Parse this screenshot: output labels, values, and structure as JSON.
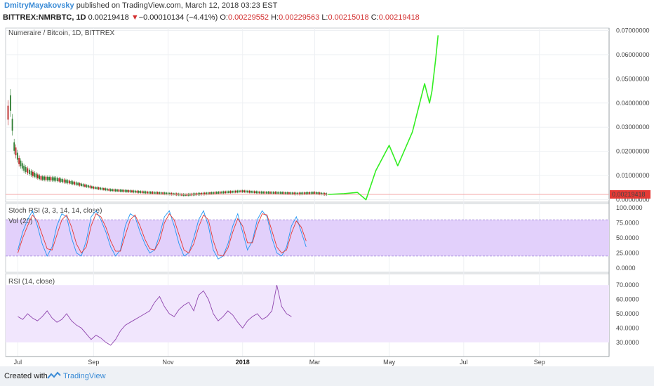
{
  "header": {
    "author": "DmitryMayakovsky",
    "published": "published on TradingView.com, March 12, 2018 03:23 EST",
    "symbol": "BITTREX:NMRBTC, 1D",
    "last": "0.00219418",
    "change_arrow": "▼",
    "change": "−0.00010134 (−4.41%)",
    "o_label": "O:",
    "o": "0.00229552",
    "h_label": "H:",
    "h": "0.00229563",
    "l_label": "L:",
    "l": "0.00215018",
    "c_label": "C:",
    "c": "0.00219418"
  },
  "footer": {
    "created_with": "Created with",
    "brand": "TradingView"
  },
  "colors": {
    "candle_up": "#2e7d32",
    "candle_down": "#b71c1c",
    "drawing": "#33ee22",
    "stoch_k": "#2196f3",
    "stoch_d": "#e53935",
    "rsi_line": "#8e44ad",
    "stoch_band": "#e2d0fb",
    "rsi_band": "#f1e6fd",
    "price_badge": "#e53935"
  },
  "chart_data": [
    {
      "type": "line",
      "pane": "price",
      "title": "Numeraire / Bitcoin, 1D, BITTREX",
      "y_ticks": [
        "0.07000000",
        "0.06000000",
        "0.05000000",
        "0.04000000",
        "0.03000000",
        "0.02000000",
        "0.01000000",
        "0.00000000"
      ],
      "ylim": [
        -0.001,
        0.071
      ],
      "current_price_label": "0.00219418",
      "series": [
        {
          "kind": "candles",
          "x": [
            "2017-06-23",
            "2017-06-25",
            "2017-06-28",
            "2017-07-02",
            "2017-07-06",
            "2017-07-12",
            "2017-07-20",
            "2017-08-01",
            "2017-08-15",
            "2017-09-01",
            "2017-09-15",
            "2017-10-01",
            "2017-10-15",
            "2017-11-01",
            "2017-11-15",
            "2017-12-01",
            "2017-12-15",
            "2018-01-01",
            "2018-01-15",
            "2018-02-01",
            "2018-02-15",
            "2018-03-01",
            "2018-03-12"
          ],
          "y": [
            0.036,
            0.04,
            0.022,
            0.016,
            0.013,
            0.011,
            0.009,
            0.0085,
            0.007,
            0.005,
            0.004,
            0.0035,
            0.003,
            0.0025,
            0.002,
            0.0025,
            0.003,
            0.0035,
            0.003,
            0.0028,
            0.0025,
            0.0028,
            0.0022
          ]
        },
        {
          "kind": "drawing",
          "x": [
            "2018-03-12",
            "2018-03-25",
            "2018-04-05",
            "2018-04-12",
            "2018-04-20",
            "2018-05-01",
            "2018-05-08",
            "2018-05-20",
            "2018-05-30",
            "2018-06-03",
            "2018-06-05",
            "2018-06-08",
            "2018-06-10"
          ],
          "y": [
            0.0022,
            0.0025,
            0.003,
            0.0,
            0.012,
            0.0225,
            0.014,
            0.028,
            0.048,
            0.04,
            0.045,
            0.058,
            0.068
          ]
        }
      ]
    },
    {
      "type": "line",
      "pane": "stoch_rsi",
      "title": "Stoch RSI (3, 3, 14, 14, close)",
      "overlay_title": "Vol (20)",
      "y_ticks": [
        "100.0000",
        "75.0000",
        "50.0000",
        "25.0000",
        "0.0000"
      ],
      "ylim": [
        0,
        100
      ],
      "band": [
        20,
        80
      ],
      "series": [
        {
          "name": "K",
          "x_start": "2017-07-01",
          "step_days": 4,
          "values": [
            30,
            60,
            80,
            95,
            70,
            40,
            20,
            35,
            70,
            90,
            85,
            50,
            25,
            20,
            45,
            85,
            95,
            80,
            60,
            35,
            20,
            30,
            70,
            90,
            85,
            60,
            40,
            25,
            30,
            55,
            85,
            95,
            70,
            40,
            20,
            25,
            50,
            80,
            95,
            70,
            30,
            15,
            20,
            40,
            70,
            90,
            60,
            30,
            45,
            80,
            95,
            85,
            50,
            25,
            20,
            35,
            70,
            85,
            60,
            35
          ]
        },
        {
          "name": "D",
          "x_start": "2017-07-01",
          "step_days": 4,
          "values": [
            25,
            50,
            70,
            88,
            78,
            55,
            32,
            30,
            55,
            80,
            88,
            68,
            40,
            25,
            35,
            70,
            90,
            85,
            68,
            45,
            28,
            28,
            55,
            80,
            88,
            70,
            48,
            32,
            30,
            45,
            75,
            90,
            80,
            55,
            30,
            25,
            40,
            68,
            88,
            80,
            45,
            22,
            20,
            33,
            60,
            82,
            70,
            42,
            42,
            70,
            90,
            88,
            62,
            35,
            25,
            30,
            58,
            78,
            68,
            45
          ]
        }
      ]
    },
    {
      "type": "line",
      "pane": "rsi",
      "title": "RSI (14, close)",
      "y_ticks": [
        "70.0000",
        "60.0000",
        "50.0000",
        "40.0000",
        "30.0000"
      ],
      "ylim": [
        25,
        75
      ],
      "band": [
        30,
        70
      ],
      "series": [
        {
          "name": "RSI",
          "x_start": "2017-07-01",
          "step_days": 4,
          "values": [
            48,
            46,
            50,
            47,
            45,
            48,
            52,
            47,
            44,
            46,
            50,
            45,
            42,
            40,
            36,
            32,
            35,
            33,
            30,
            28,
            32,
            38,
            42,
            44,
            46,
            48,
            50,
            52,
            58,
            62,
            55,
            50,
            48,
            53,
            56,
            58,
            52,
            63,
            66,
            60,
            50,
            45,
            48,
            52,
            49,
            44,
            40,
            45,
            48,
            50,
            46,
            48,
            52,
            70,
            55,
            50,
            48
          ]
        }
      ]
    }
  ],
  "x_axis": {
    "ticks": [
      {
        "label": "Jul",
        "date": "2017-07-01",
        "bold": false
      },
      {
        "label": "Sep",
        "date": "2017-09-01",
        "bold": false
      },
      {
        "label": "Nov",
        "date": "2017-11-01",
        "bold": false
      },
      {
        "label": "2018",
        "date": "2018-01-01",
        "bold": true
      },
      {
        "label": "Mar",
        "date": "2018-03-01",
        "bold": false
      },
      {
        "label": "May",
        "date": "2018-05-01",
        "bold": false
      },
      {
        "label": "Jul",
        "date": "2018-07-01",
        "bold": false
      },
      {
        "label": "Sep",
        "date": "2018-09-01",
        "bold": false
      }
    ]
  }
}
